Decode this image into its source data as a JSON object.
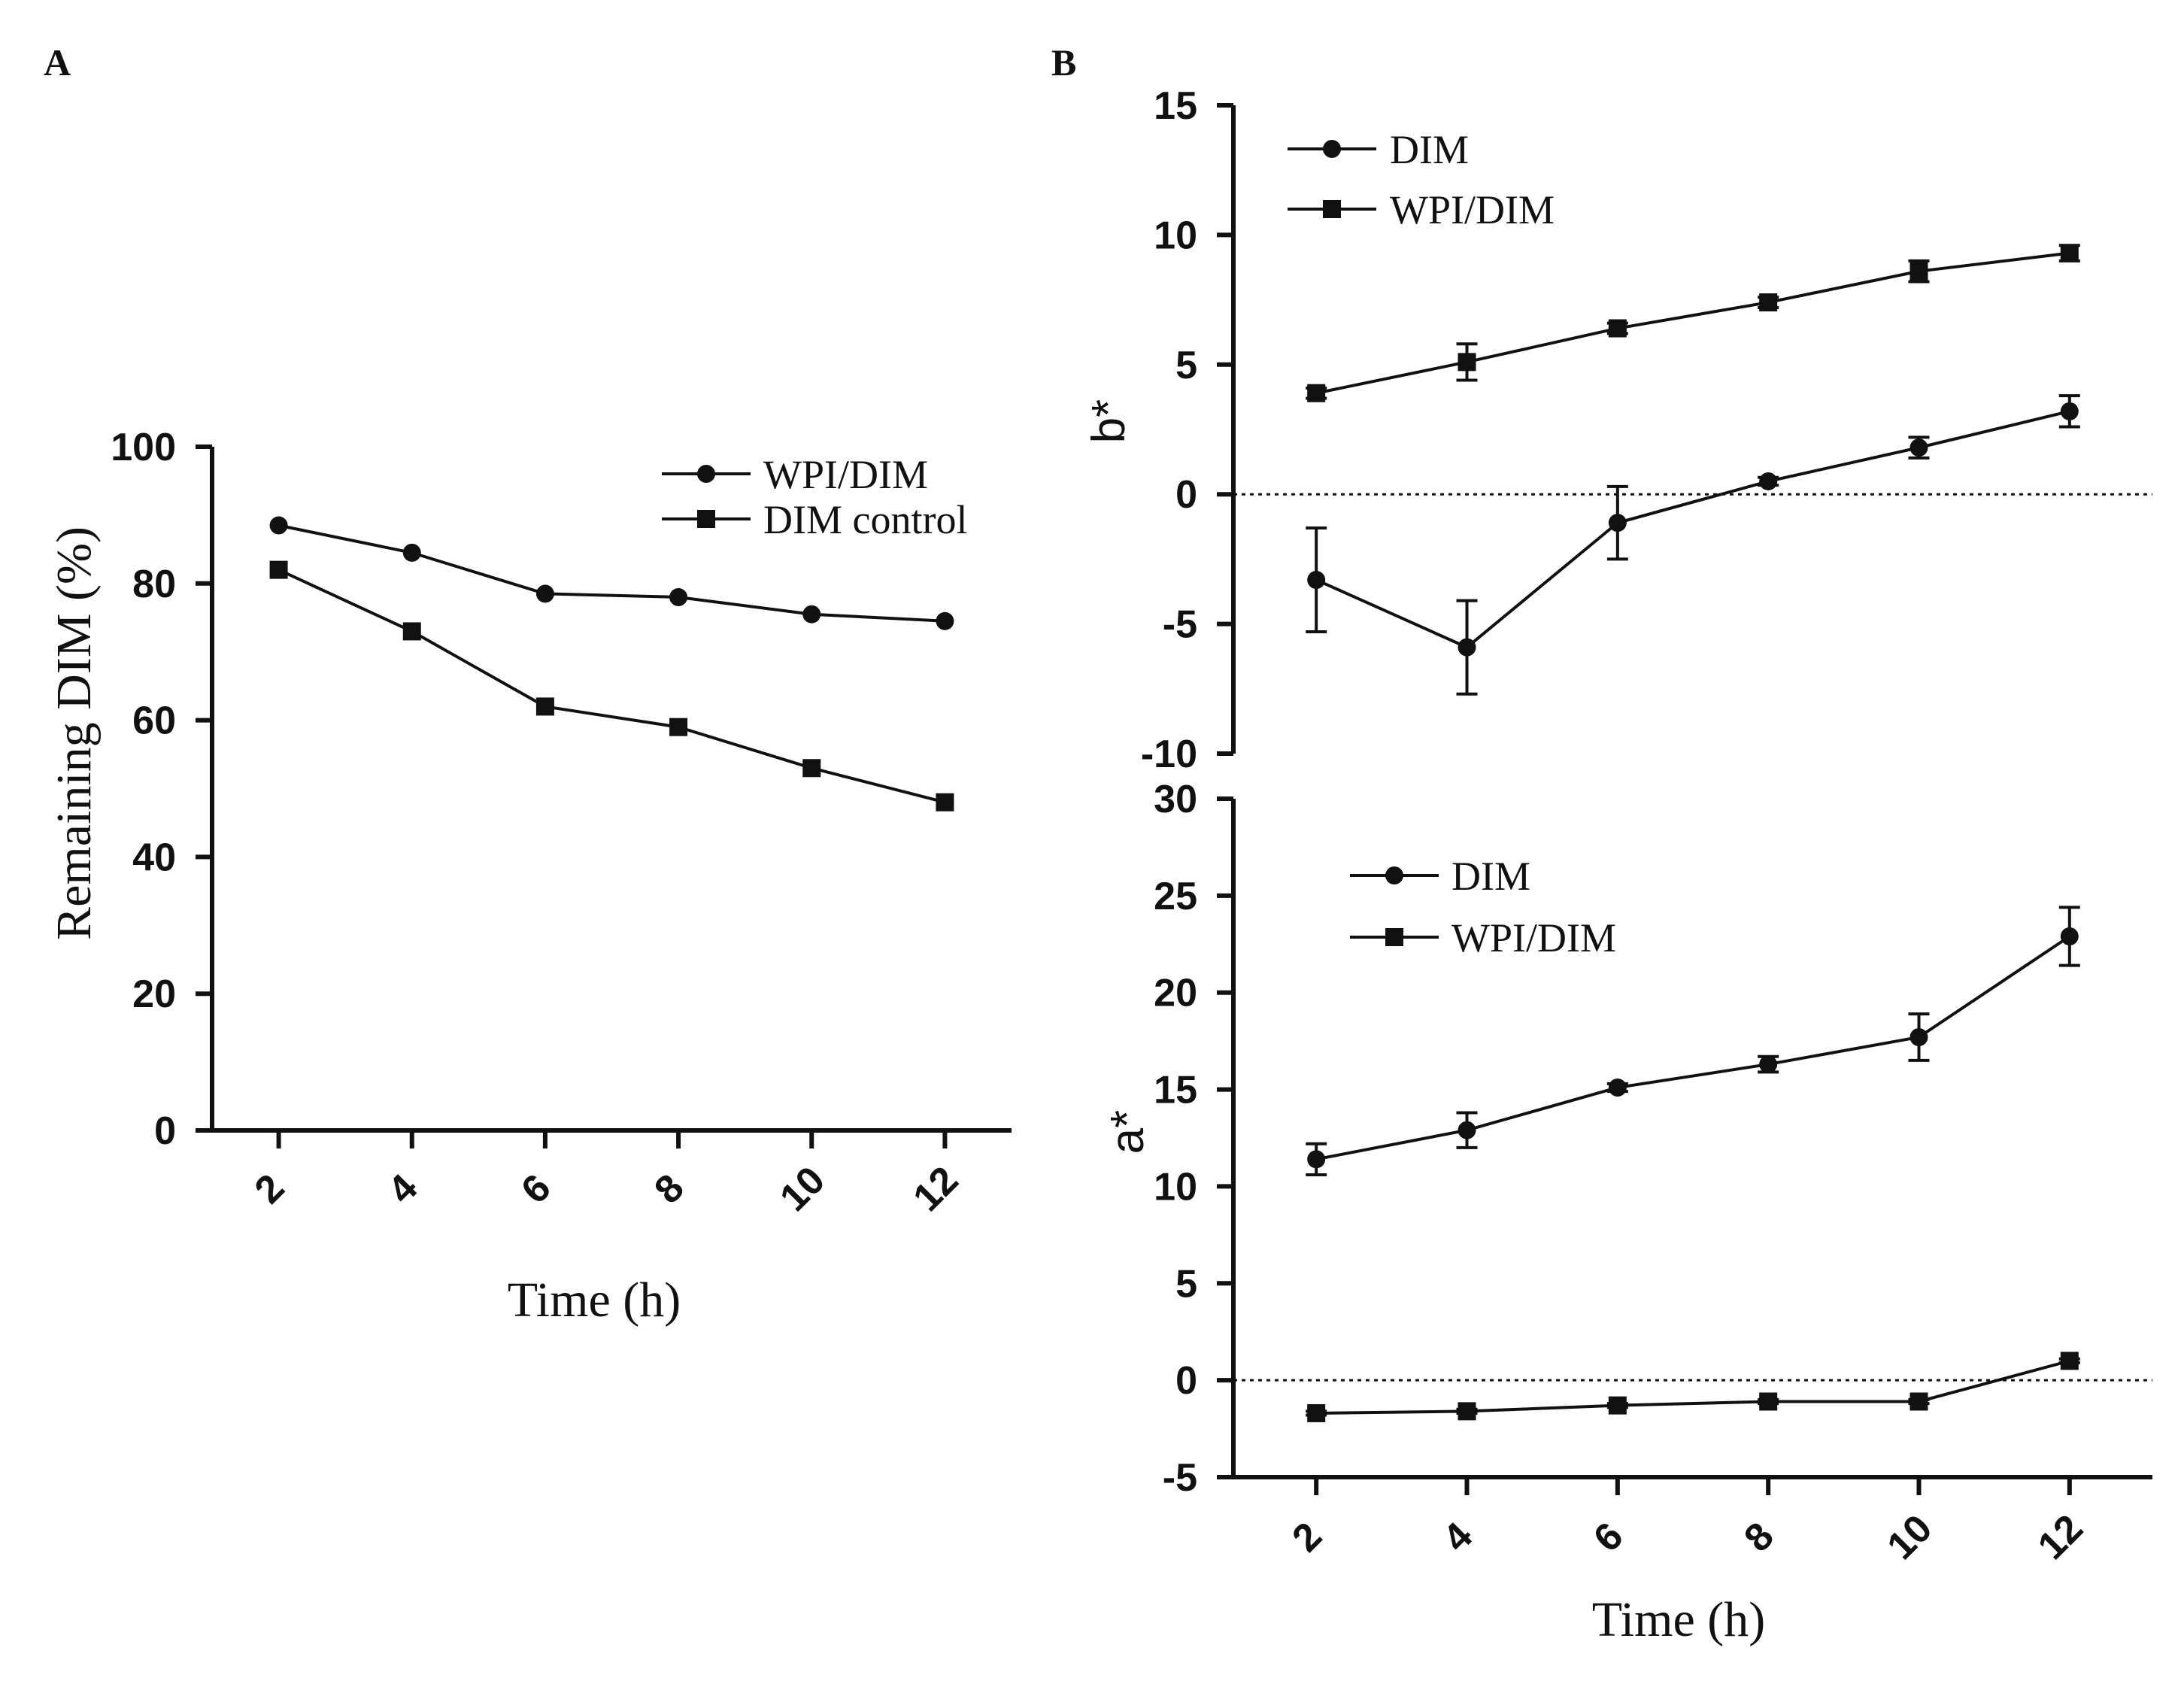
{
  "panels": {
    "a": "A",
    "b": "B"
  },
  "chart_data": [
    {
      "id": "panelA",
      "type": "line",
      "xlabel": "Time (h)",
      "ylabel": "Remaining DIM (%)",
      "x": [
        2,
        4,
        6,
        8,
        10,
        12
      ],
      "ylim": [
        0,
        100
      ],
      "yticks": [
        0,
        20,
        40,
        60,
        80,
        100
      ],
      "legend_position": "top-right",
      "series": [
        {
          "name": "WPI/DIM",
          "marker": "circle",
          "values": [
            88.5,
            84.5,
            78.5,
            78,
            75.5,
            74.5
          ]
        },
        {
          "name": "DIM control",
          "marker": "square",
          "values": [
            82,
            73,
            62,
            59,
            53,
            48
          ]
        }
      ]
    },
    {
      "id": "panelBtop",
      "type": "line",
      "xlabel": "",
      "ylabel": "b*",
      "x": [
        2,
        4,
        6,
        8,
        10,
        12
      ],
      "ylim": [
        -10,
        15
      ],
      "yticks": [
        -10,
        -5,
        0,
        5,
        10,
        15
      ],
      "reference_line": 0,
      "legend_position": "top-left",
      "series": [
        {
          "name": "DIM",
          "marker": "circle",
          "values": [
            -3.3,
            -5.9,
            -1.1,
            0.5,
            1.8,
            3.2
          ],
          "errors": [
            2.0,
            1.8,
            1.4,
            0.15,
            0.4,
            0.6
          ]
        },
        {
          "name": "WPI/DIM",
          "marker": "square",
          "values": [
            3.9,
            5.1,
            6.4,
            7.4,
            8.6,
            9.3
          ],
          "errors": [
            0.2,
            0.7,
            0.2,
            0.2,
            0.4,
            0.3
          ]
        }
      ]
    },
    {
      "id": "panelBbottom",
      "type": "line",
      "xlabel": "Time (h)",
      "ylabel": "a*",
      "x": [
        2,
        4,
        6,
        8,
        10,
        12
      ],
      "ylim": [
        -5,
        30
      ],
      "yticks": [
        -5,
        0,
        5,
        10,
        15,
        20,
        25,
        30
      ],
      "reference_line": 0,
      "legend_position": "top-left",
      "series": [
        {
          "name": "DIM",
          "marker": "circle",
          "values": [
            11.4,
            12.9,
            15.1,
            16.3,
            17.7,
            22.9
          ],
          "errors": [
            0.8,
            0.9,
            0.2,
            0.4,
            1.2,
            1.5
          ]
        },
        {
          "name": "WPI/DIM",
          "marker": "square",
          "values": [
            -1.7,
            -1.6,
            -1.3,
            -1.1,
            -1.1,
            1.0
          ],
          "errors": [
            0.1,
            0.1,
            0.1,
            0.1,
            0.1,
            0.1
          ]
        }
      ]
    }
  ]
}
